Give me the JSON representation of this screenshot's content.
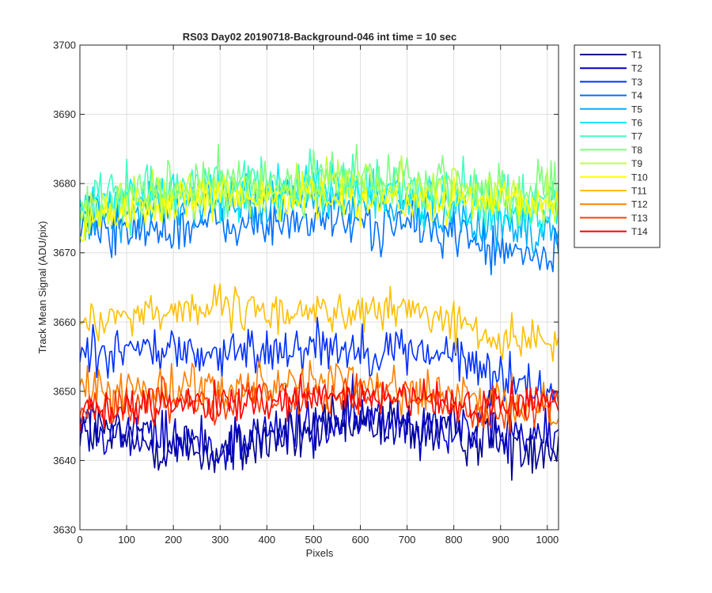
{
  "chart_data": {
    "type": "line",
    "title": "RS03 Day02 20190718-Background-046 int time = 10 sec",
    "xlabel": "Pixels",
    "ylabel": "Track Mean Signal (ADU/pix)",
    "xlim": [
      0,
      1024
    ],
    "ylim": [
      3630,
      3700
    ],
    "xticks": [
      0,
      100,
      200,
      300,
      400,
      500,
      600,
      700,
      800,
      900,
      1000
    ],
    "yticks": [
      3630,
      3640,
      3650,
      3660,
      3670,
      3680,
      3690,
      3700
    ],
    "grid": true,
    "legend_position": "outside-top-right",
    "x_step": 4,
    "series": [
      {
        "name": "T1",
        "color": "#00008f",
        "profile": [
          [
            0,
            3645
          ],
          [
            100,
            3643
          ],
          [
            200,
            3642
          ],
          [
            300,
            3641
          ],
          [
            400,
            3643
          ],
          [
            500,
            3644
          ],
          [
            600,
            3645
          ],
          [
            700,
            3645
          ],
          [
            800,
            3644
          ],
          [
            900,
            3643
          ],
          [
            1024,
            3642
          ]
        ],
        "noise": 2.2
      },
      {
        "name": "T2",
        "color": "#0000c8",
        "profile": [
          [
            0,
            3646
          ],
          [
            100,
            3644
          ],
          [
            200,
            3643
          ],
          [
            300,
            3642
          ],
          [
            400,
            3644
          ],
          [
            500,
            3645
          ],
          [
            600,
            3646
          ],
          [
            700,
            3646
          ],
          [
            800,
            3645
          ],
          [
            900,
            3644
          ],
          [
            1024,
            3643
          ]
        ],
        "noise": 2.2
      },
      {
        "name": "T3",
        "color": "#0030ff",
        "profile": [
          [
            0,
            3656
          ],
          [
            100,
            3656
          ],
          [
            200,
            3656
          ],
          [
            300,
            3655
          ],
          [
            400,
            3656
          ],
          [
            500,
            3657
          ],
          [
            600,
            3656
          ],
          [
            700,
            3656
          ],
          [
            800,
            3655
          ],
          [
            900,
            3652
          ],
          [
            1024,
            3650
          ]
        ],
        "noise": 1.8
      },
      {
        "name": "T4",
        "color": "#0070ff",
        "profile": [
          [
            0,
            3674
          ],
          [
            100,
            3673
          ],
          [
            200,
            3674
          ],
          [
            300,
            3674
          ],
          [
            400,
            3674
          ],
          [
            500,
            3675
          ],
          [
            600,
            3674
          ],
          [
            700,
            3674
          ],
          [
            800,
            3673
          ],
          [
            900,
            3670
          ],
          [
            1024,
            3669
          ]
        ],
        "noise": 1.8
      },
      {
        "name": "T5",
        "color": "#00b0ff",
        "profile": [
          [
            0,
            3676
          ],
          [
            100,
            3676
          ],
          [
            200,
            3677
          ],
          [
            300,
            3677
          ],
          [
            400,
            3677
          ],
          [
            500,
            3678
          ],
          [
            600,
            3677
          ],
          [
            700,
            3677
          ],
          [
            800,
            3676
          ],
          [
            900,
            3674
          ],
          [
            1024,
            3673
          ]
        ],
        "noise": 1.8
      },
      {
        "name": "T6",
        "color": "#00ecff",
        "profile": [
          [
            0,
            3677
          ],
          [
            100,
            3678
          ],
          [
            200,
            3678
          ],
          [
            300,
            3679
          ],
          [
            400,
            3679
          ],
          [
            500,
            3679
          ],
          [
            600,
            3679
          ],
          [
            700,
            3678
          ],
          [
            800,
            3677
          ],
          [
            900,
            3676
          ],
          [
            1024,
            3676
          ]
        ],
        "noise": 1.8
      },
      {
        "name": "T7",
        "color": "#40ffbf",
        "profile": [
          [
            0,
            3677
          ],
          [
            100,
            3678
          ],
          [
            200,
            3679
          ],
          [
            300,
            3680
          ],
          [
            400,
            3680
          ],
          [
            500,
            3680
          ],
          [
            600,
            3680
          ],
          [
            700,
            3679
          ],
          [
            800,
            3679
          ],
          [
            900,
            3678
          ],
          [
            1024,
            3678
          ]
        ],
        "noise": 2.0
      },
      {
        "name": "T8",
        "color": "#80ff80",
        "profile": [
          [
            0,
            3676
          ],
          [
            100,
            3677
          ],
          [
            200,
            3679
          ],
          [
            300,
            3680
          ],
          [
            400,
            3680
          ],
          [
            500,
            3681
          ],
          [
            600,
            3681
          ],
          [
            700,
            3680
          ],
          [
            800,
            3680
          ],
          [
            900,
            3679
          ],
          [
            1024,
            3679
          ]
        ],
        "noise": 2.0
      },
      {
        "name": "T9",
        "color": "#bfff40",
        "profile": [
          [
            0,
            3675
          ],
          [
            100,
            3677
          ],
          [
            200,
            3678
          ],
          [
            300,
            3679
          ],
          [
            400,
            3679
          ],
          [
            500,
            3680
          ],
          [
            600,
            3680
          ],
          [
            700,
            3679
          ],
          [
            800,
            3679
          ],
          [
            900,
            3678
          ],
          [
            1024,
            3678
          ]
        ],
        "noise": 1.8
      },
      {
        "name": "T10",
        "color": "#ffff00",
        "profile": [
          [
            0,
            3674
          ],
          [
            100,
            3676
          ],
          [
            200,
            3677
          ],
          [
            300,
            3678
          ],
          [
            400,
            3678
          ],
          [
            500,
            3678
          ],
          [
            600,
            3678
          ],
          [
            700,
            3677
          ],
          [
            800,
            3677
          ],
          [
            900,
            3677
          ],
          [
            1024,
            3677
          ]
        ],
        "noise": 1.5
      },
      {
        "name": "T11",
        "color": "#ffbf00",
        "profile": [
          [
            0,
            3660
          ],
          [
            100,
            3661
          ],
          [
            200,
            3662
          ],
          [
            300,
            3662
          ],
          [
            400,
            3661
          ],
          [
            500,
            3662
          ],
          [
            600,
            3661
          ],
          [
            700,
            3662
          ],
          [
            800,
            3660
          ],
          [
            900,
            3657
          ],
          [
            1024,
            3658
          ]
        ],
        "noise": 1.5
      },
      {
        "name": "T12",
        "color": "#ff8000",
        "profile": [
          [
            0,
            3650
          ],
          [
            100,
            3650
          ],
          [
            200,
            3651
          ],
          [
            300,
            3651
          ],
          [
            400,
            3651
          ],
          [
            500,
            3652
          ],
          [
            600,
            3651
          ],
          [
            700,
            3650
          ],
          [
            800,
            3649
          ],
          [
            900,
            3648
          ],
          [
            1024,
            3648
          ]
        ],
        "noise": 1.6
      },
      {
        "name": "T13",
        "color": "#ff4000",
        "profile": [
          [
            0,
            3648
          ],
          [
            100,
            3648
          ],
          [
            200,
            3649
          ],
          [
            300,
            3649
          ],
          [
            400,
            3649
          ],
          [
            500,
            3650
          ],
          [
            600,
            3650
          ],
          [
            700,
            3649
          ],
          [
            800,
            3648
          ],
          [
            900,
            3647
          ],
          [
            1024,
            3648
          ]
        ],
        "noise": 1.5
      },
      {
        "name": "T14",
        "color": "#ff0000",
        "profile": [
          [
            0,
            3647
          ],
          [
            100,
            3647
          ],
          [
            200,
            3648
          ],
          [
            300,
            3648
          ],
          [
            400,
            3648
          ],
          [
            500,
            3649
          ],
          [
            600,
            3649
          ],
          [
            700,
            3649
          ],
          [
            800,
            3648
          ],
          [
            900,
            3648
          ],
          [
            1024,
            3649
          ]
        ],
        "noise": 1.4
      }
    ]
  }
}
